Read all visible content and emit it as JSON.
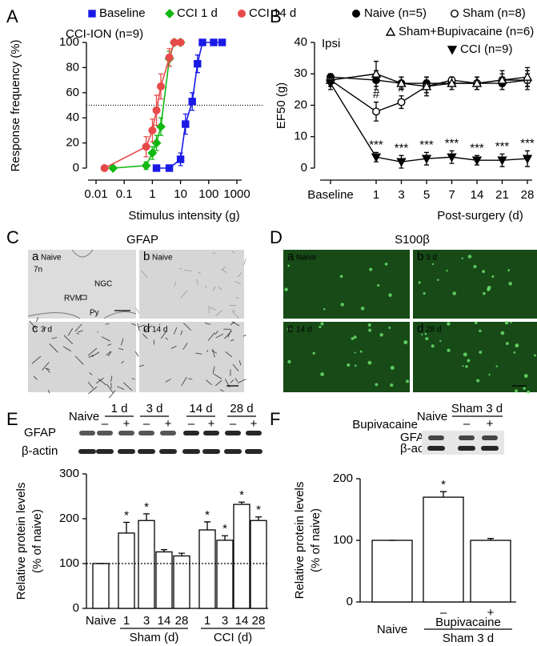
{
  "panel_labels": [
    "A",
    "B",
    "C",
    "D",
    "E",
    "F"
  ],
  "chart_data": [
    {
      "type": "line",
      "title": "CCI-ION (n=9)",
      "x_label": "Stimulus intensity (g)",
      "y_label": "Response frequency (%)",
      "x_scale": "log",
      "xlim": [
        0.01,
        1000
      ],
      "xticks": [
        0.01,
        0.1,
        1,
        10,
        100,
        1000
      ],
      "ylim": [
        0,
        100
      ],
      "yticks": [
        0,
        20,
        40,
        60,
        80,
        100
      ],
      "reference_line": 50,
      "legend": "top",
      "series": [
        {
          "name": "Baseline",
          "color": "#1a1ae6",
          "marker": "square",
          "x": [
            1.4,
            4,
            10,
            15,
            26,
            40,
            60,
            150,
            300
          ],
          "values": [
            0,
            0,
            7,
            35,
            53,
            83,
            100,
            100,
            100
          ],
          "errors": [
            0,
            0,
            5,
            8,
            7,
            7,
            0,
            0,
            0
          ]
        },
        {
          "name": "CCI 1 d",
          "color": "#12b812",
          "marker": "diamond",
          "x": [
            0.04,
            0.6,
            1,
            1.4,
            2,
            4,
            6,
            10
          ],
          "values": [
            0,
            2,
            12,
            20,
            33,
            87,
            100,
            100
          ],
          "errors": [
            0,
            3,
            5,
            6,
            7,
            6,
            0,
            0
          ]
        },
        {
          "name": "CCI 14 d",
          "color": "#e84a4a",
          "marker": "circle",
          "x": [
            0.02,
            0.6,
            1,
            1.4,
            2,
            4,
            6,
            10
          ],
          "values": [
            0,
            17,
            30,
            46,
            65,
            88,
            100,
            100
          ],
          "errors": [
            0,
            8,
            9,
            12,
            10,
            7,
            0,
            0
          ]
        }
      ]
    },
    {
      "type": "line",
      "title": "Ipsi",
      "x_label": "Post-surgery (d)",
      "y_label": "EF50 (g)",
      "categories": [
        "Baseline",
        "1",
        "3",
        "5",
        "7",
        "14",
        "21",
        "28"
      ],
      "ylim": [
        0,
        40
      ],
      "yticks": [
        0,
        10,
        20,
        30,
        40
      ],
      "legend": "top",
      "series": [
        {
          "name": "Naive (n=5)",
          "color": "#000000",
          "marker": "circle",
          "filled": true,
          "values": [
            29,
            28,
            27,
            27,
            27,
            27,
            27,
            28
          ],
          "errors": [
            1,
            3,
            2,
            2,
            2,
            2,
            2,
            3
          ]
        },
        {
          "name": "Sham (n=8)",
          "color": "#000000",
          "marker": "circle",
          "filled": false,
          "values": [
            28,
            18,
            21,
            26,
            28,
            27,
            28,
            28
          ],
          "errors": [
            1,
            3,
            2,
            2,
            1,
            2,
            2,
            2
          ],
          "significance": [
            null,
            "#",
            "#",
            null,
            null,
            null,
            null,
            null
          ]
        },
        {
          "name": "Sham+Bupivacaine (n=6)",
          "color": "#000000",
          "marker": "triangle",
          "filled": false,
          "values": [
            28,
            30,
            27,
            26,
            27,
            27,
            28,
            29
          ],
          "errors": [
            2,
            4,
            2,
            3,
            2,
            2,
            3,
            3
          ]
        },
        {
          "name": "CCI (n=9)",
          "color": "#000000",
          "marker": "triangle-down",
          "filled": true,
          "values": [
            27,
            3.5,
            2,
            3,
            3.5,
            2.5,
            2.5,
            3
          ],
          "errors": [
            2,
            1.5,
            2,
            2,
            2,
            1.5,
            2,
            2.5
          ],
          "significance": [
            null,
            "***",
            "***",
            "***",
            "***",
            "***",
            "***",
            "***"
          ]
        }
      ]
    },
    {
      "type": "bar",
      "y_label": [
        "Relative protein levels",
        "(% of naive)"
      ],
      "categories": [
        "Naive",
        "1",
        "3",
        "14",
        "28",
        "1",
        "3",
        "14",
        "28"
      ],
      "groups": [
        "Sham (d)",
        "CCI (d)"
      ],
      "values": [
        100,
        168,
        196,
        126,
        117,
        175,
        152,
        232,
        196
      ],
      "errors": [
        0,
        24,
        15,
        5,
        6,
        18,
        10,
        5,
        8
      ],
      "significance": [
        null,
        "*",
        "*",
        null,
        null,
        "*",
        "*",
        "*",
        "*"
      ],
      "color": "#ffffff",
      "ylim": [
        0,
        300
      ],
      "yticks": [
        0,
        100,
        200,
        300
      ],
      "reference_line": 100
    },
    {
      "type": "bar",
      "y_label": [
        "Relative protein levels",
        "(% of naive)"
      ],
      "categories": [
        "Naive",
        "–",
        "+"
      ],
      "groups": [
        "Bupivacaine",
        "Sham 3 d"
      ],
      "values": [
        100,
        170,
        100
      ],
      "errors": [
        0,
        9,
        3
      ],
      "significance": [
        null,
        "*",
        null
      ],
      "color": "#ffffff",
      "ylim": [
        0,
        200
      ],
      "yticks": [
        0,
        100,
        200
      ]
    }
  ],
  "panel_C": {
    "title": "GFAP",
    "images": [
      {
        "letter": "a",
        "label": "Naive"
      },
      {
        "letter": "b",
        "label": "Naive"
      },
      {
        "letter": "c",
        "label": "3 d"
      },
      {
        "letter": "d",
        "label": "14 d"
      }
    ],
    "annotations": [
      "7n",
      "NGC",
      "RVM",
      "Py"
    ]
  },
  "panel_D": {
    "title": "S100β",
    "images": [
      {
        "letter": "a",
        "label": "Naive"
      },
      {
        "letter": "b",
        "label": "3 d"
      },
      {
        "letter": "c",
        "label": "14 d"
      },
      {
        "letter": "d",
        "label": "28 d"
      }
    ]
  },
  "blot_E": {
    "lane_header": "Naive",
    "timepoints": [
      "1 d",
      "3 d",
      "14 d",
      "28 d"
    ],
    "signs": [
      "–",
      "+",
      "–",
      "+",
      "–",
      "+",
      "–",
      "+"
    ],
    "rows": [
      "GFAP",
      "β-actin"
    ]
  },
  "blot_F": {
    "lane_header": "Naive",
    "group": "Sham 3 d",
    "treatment": "Bupivacaine",
    "signs": [
      "–",
      "+"
    ],
    "rows": [
      "GFAP",
      "β-actin"
    ]
  }
}
